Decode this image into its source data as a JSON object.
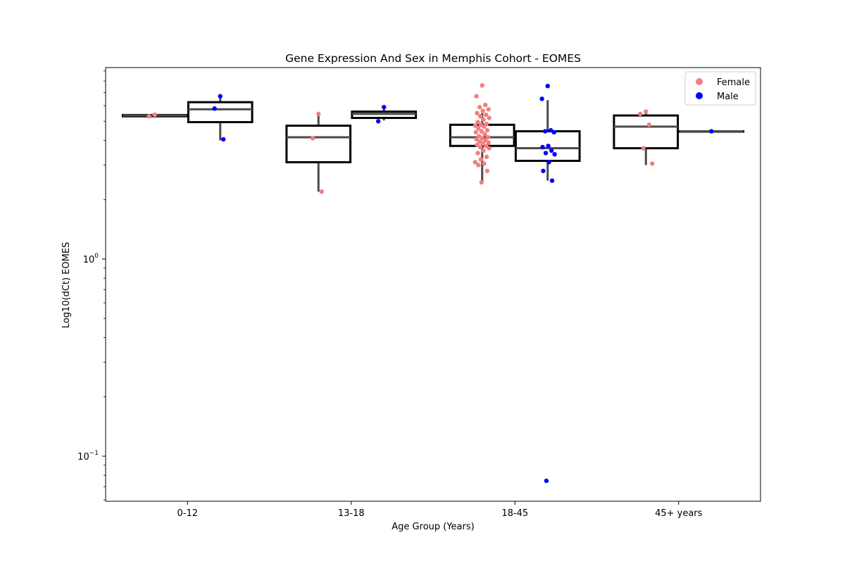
{
  "chart_data": {
    "type": "box",
    "title": "Gene Expression And Sex in Memphis Cohort - EOMES",
    "xlabel": "Age Group (Years)",
    "ylabel": "Log10(dCt) EOMES",
    "yscale": "log",
    "ylim": [
      0.06,
      9.5
    ],
    "categories": [
      "0-12",
      "13-18",
      "18-45",
      "45+ years"
    ],
    "yticks": [
      {
        "value": 0.1,
        "base": "10",
        "exp": "−1"
      },
      {
        "value": 1,
        "base": "10",
        "exp": "0"
      }
    ],
    "legend": {
      "position": "top-right"
    },
    "series": [
      {
        "name": "Female",
        "color": "#f08080",
        "boxes": [
          {
            "category": "0-12",
            "whislo": 5.3,
            "q1": 5.3,
            "median": 5.35,
            "q3": 5.38,
            "whishi": 5.45
          },
          {
            "category": "13-18",
            "whislo": 2.2,
            "q1": 3.1,
            "median": 4.15,
            "q3": 4.75,
            "whishi": 5.45
          },
          {
            "category": "18-45",
            "whislo": 2.45,
            "q1": 3.75,
            "median": 4.15,
            "q3": 4.8,
            "whishi": 5.5
          },
          {
            "category": "45+ years",
            "whislo": 3.0,
            "q1": 3.65,
            "median": 4.7,
            "q3": 5.35,
            "whishi": 5.55
          }
        ],
        "points": [
          {
            "category": "0-12",
            "y": [
              5.4,
              5.3
            ]
          },
          {
            "category": "13-18",
            "y": [
              5.45,
              4.1,
              2.2
            ]
          },
          {
            "category": "18-45",
            "y": [
              7.6,
              6.7,
              6.05,
              5.9,
              5.75,
              5.65,
              5.5,
              5.4,
              5.3,
              5.2,
              5.1,
              4.95,
              4.85,
              4.8,
              4.75,
              4.7,
              4.6,
              4.5,
              4.45,
              4.4,
              4.3,
              4.2,
              4.15,
              4.1,
              4.05,
              4.0,
              3.95,
              3.9,
              3.85,
              3.8,
              3.75,
              3.7,
              3.65,
              3.55,
              3.45,
              3.3,
              3.2,
              3.1,
              3.05,
              3.0,
              2.8,
              2.45
            ]
          },
          {
            "category": "45+ years",
            "y": [
              5.6,
              5.45,
              4.8,
              3.65,
              3.05
            ]
          }
        ]
      },
      {
        "name": "Male",
        "color": "#0000ff",
        "boxes": [
          {
            "category": "0-12",
            "whislo": 4.0,
            "q1": 4.95,
            "median": 5.75,
            "q3": 6.25,
            "whishi": 6.7
          },
          {
            "category": "13-18",
            "whislo": 5.05,
            "q1": 5.2,
            "median": 5.45,
            "q3": 5.6,
            "whishi": 5.85
          },
          {
            "category": "18-45",
            "whislo": 2.5,
            "q1": 3.15,
            "median": 3.65,
            "q3": 4.45,
            "whishi": 6.4
          },
          {
            "category": "45+ years",
            "whislo": 4.45,
            "q1": 4.45,
            "median": 4.45,
            "q3": 4.45,
            "whishi": 4.45
          }
        ],
        "points": [
          {
            "category": "0-12",
            "y": [
              6.7,
              5.8,
              4.05
            ]
          },
          {
            "category": "13-18",
            "y": [
              5.9,
              5.0
            ]
          },
          {
            "category": "18-45",
            "y": [
              7.55,
              6.5,
              4.5,
              4.45,
              4.4,
              3.75,
              3.7,
              3.55,
              3.45,
              3.4,
              3.1,
              2.8,
              2.5,
              0.075
            ]
          },
          {
            "category": "45+ years",
            "y": [
              4.45
            ]
          }
        ]
      }
    ]
  }
}
